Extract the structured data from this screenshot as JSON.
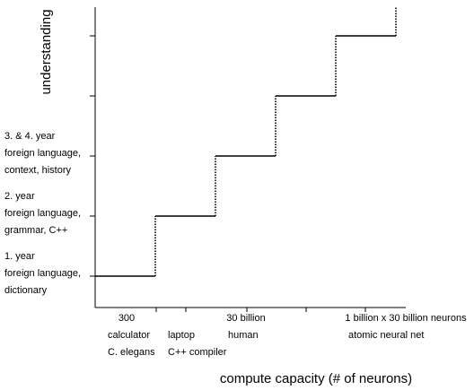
{
  "chart_data": {
    "type": "line",
    "subtype": "step",
    "title": "",
    "xlabel": "compute capacity (# of neurons)",
    "ylabel": "understanding",
    "grid": false,
    "legend": "none",
    "x_ticks": [
      {
        "lines": [
          "300",
          "calculator",
          "C. elegans"
        ]
      },
      {
        "lines": [
          "",
          "laptop",
          "C++ compiler"
        ]
      },
      {
        "lines": [
          "30 billion",
          "human",
          ""
        ]
      },
      {
        "lines": [
          "",
          "",
          ""
        ]
      },
      {
        "lines": [
          "1 billion x 30 billion neurons",
          "atomic neural net",
          ""
        ]
      }
    ],
    "y_ticks": [
      {
        "level": 0,
        "lines": [
          "1. year",
          "foreign language,",
          "dictionary"
        ]
      },
      {
        "level": 1,
        "lines": [
          "2. year",
          "foreign language,",
          "grammar, C++"
        ]
      },
      {
        "level": 2,
        "lines": [
          "3. & 4. year",
          "foreign language,",
          "context, history"
        ]
      },
      {
        "level": 3,
        "lines": []
      },
      {
        "level": 4,
        "lines": []
      }
    ],
    "series": [
      {
        "points": [
          {
            "x": 0,
            "y": 0
          },
          {
            "x": 1,
            "y": 0
          },
          {
            "x": 1,
            "y": 1
          },
          {
            "x": 2,
            "y": 1
          },
          {
            "x": 2,
            "y": 2
          },
          {
            "x": 3,
            "y": 2
          },
          {
            "x": 3,
            "y": 3
          },
          {
            "x": 4,
            "y": 3
          },
          {
            "x": 4,
            "y": 4
          },
          {
            "x": 5,
            "y": 4
          },
          {
            "x": 5,
            "y": 5
          }
        ],
        "horizontal_style": "solid",
        "vertical_style": "dotted",
        "color": "#000000"
      }
    ],
    "colors": {
      "line": "#000000",
      "axis": "#000000",
      "text": "#000000"
    }
  }
}
